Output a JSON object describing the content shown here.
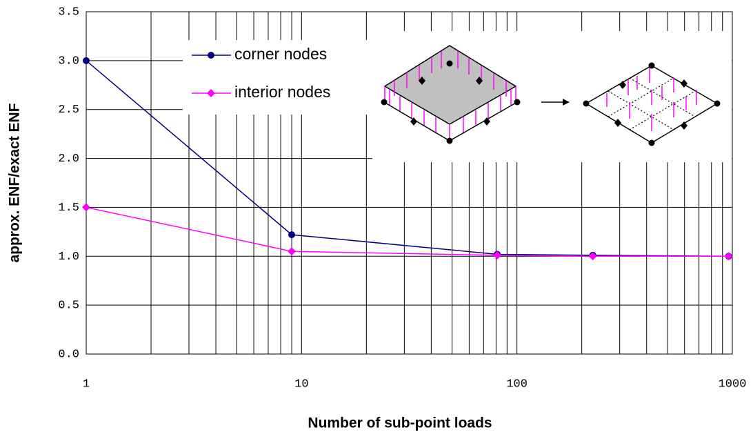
{
  "chart_data": {
    "type": "line",
    "x_label": "Number of sub-point loads",
    "y_label": "approx. ENF/exact ENF",
    "xscale": "log",
    "xlim": [
      1,
      1000
    ],
    "xticks": [
      1,
      10,
      100,
      1000
    ],
    "ylim": [
      0,
      3.5
    ],
    "yticks": [
      {
        "value": 0,
        "label": "0.0"
      },
      {
        "value": 0.5,
        "label": "0.5"
      },
      {
        "value": 1,
        "label": "1.0"
      },
      {
        "value": 1.5,
        "label": "1.5"
      },
      {
        "value": 2,
        "label": "2.0"
      },
      {
        "value": 2.5,
        "label": "2.5"
      },
      {
        "value": 3,
        "label": "3.0"
      },
      {
        "value": 3.5,
        "label": "3.5"
      }
    ],
    "grid": true,
    "x": [
      1,
      9,
      81,
      225,
      961
    ],
    "series": [
      {
        "name": "corner nodes",
        "color": "#000080",
        "marker": "circle",
        "values": [
          3.0,
          1.22,
          1.02,
          1.01,
          1.0
        ]
      },
      {
        "name": "interior nodes",
        "color": "#ff00ff",
        "marker": "diamond",
        "values": [
          1.5,
          1.05,
          1.01,
          1.0,
          1.0
        ]
      }
    ]
  }
}
